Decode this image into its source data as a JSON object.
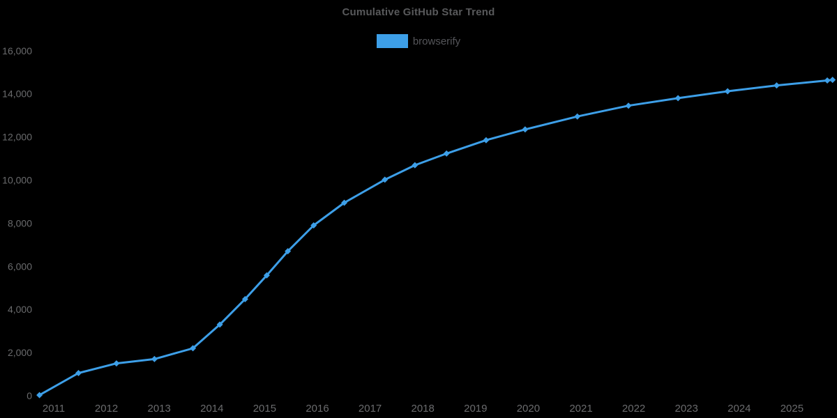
{
  "page": {
    "background_color": "#000000"
  },
  "legend": {
    "items": [
      {
        "label": "browserify",
        "color": "#3D9FE8"
      }
    ],
    "text_color": "#55565A"
  },
  "chart_data": {
    "type": "line",
    "title": "Cumulative GitHub Star Trend",
    "title_color": "#58595B",
    "xlabel": "",
    "ylabel": "",
    "grid": false,
    "legend_position": "top-center",
    "background_color": "#000000",
    "tick_label_color": "#6A6B6D",
    "xlim": [
      2010.6,
      2025.9
    ],
    "ylim": [
      0,
      16000
    ],
    "x_ticks": [
      {
        "value": 2011,
        "label": "2011"
      },
      {
        "value": 2012,
        "label": "2012"
      },
      {
        "value": 2013,
        "label": "2013"
      },
      {
        "value": 2014,
        "label": "2014"
      },
      {
        "value": 2015,
        "label": "2015"
      },
      {
        "value": 2016,
        "label": "2016"
      },
      {
        "value": 2017,
        "label": "2017"
      },
      {
        "value": 2018,
        "label": "2018"
      },
      {
        "value": 2019,
        "label": "2019"
      },
      {
        "value": 2020,
        "label": "2020"
      },
      {
        "value": 2021,
        "label": "2021"
      },
      {
        "value": 2022,
        "label": "2022"
      },
      {
        "value": 2023,
        "label": "2023"
      },
      {
        "value": 2024,
        "label": "2024"
      },
      {
        "value": 2025,
        "label": "2025"
      }
    ],
    "y_ticks": [
      {
        "value": 0,
        "label": "0"
      },
      {
        "value": 2000,
        "label": "2,000"
      },
      {
        "value": 4000,
        "label": "4,000"
      },
      {
        "value": 6000,
        "label": "6,000"
      },
      {
        "value": 8000,
        "label": "8,000"
      },
      {
        "value": 10000,
        "label": "10,000"
      },
      {
        "value": 12000,
        "label": "12,000"
      },
      {
        "value": 14000,
        "label": "14,000"
      },
      {
        "value": 16000,
        "label": "16,000"
      }
    ],
    "series": [
      {
        "name": "browserify",
        "color": "#3D9FE8",
        "marker": "diamond",
        "line_width": 3,
        "points": [
          [
            2010.73,
            30
          ],
          [
            2011.47,
            1050
          ],
          [
            2012.19,
            1500
          ],
          [
            2012.91,
            1700
          ],
          [
            2013.64,
            2200
          ],
          [
            2014.15,
            3300
          ],
          [
            2014.63,
            4480
          ],
          [
            2015.04,
            5580
          ],
          [
            2015.44,
            6700
          ],
          [
            2015.93,
            7900
          ],
          [
            2016.51,
            8950
          ],
          [
            2017.28,
            10020
          ],
          [
            2017.85,
            10690
          ],
          [
            2018.45,
            11230
          ],
          [
            2019.2,
            11850
          ],
          [
            2019.94,
            12350
          ],
          [
            2020.93,
            12950
          ],
          [
            2021.9,
            13450
          ],
          [
            2022.84,
            13800
          ],
          [
            2023.78,
            14120
          ],
          [
            2024.71,
            14390
          ],
          [
            2025.67,
            14620
          ],
          [
            2025.77,
            14650
          ]
        ]
      }
    ]
  }
}
